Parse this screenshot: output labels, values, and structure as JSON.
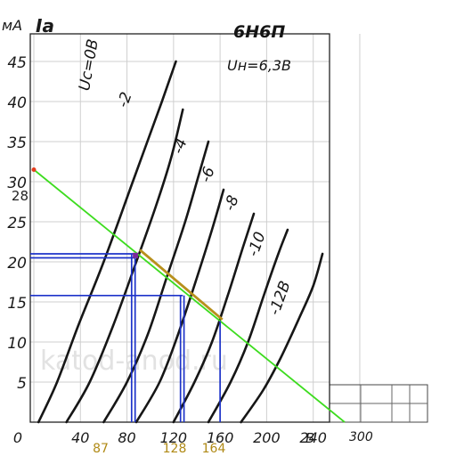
{
  "chart_data": {
    "type": "line",
    "title": "6Н6П",
    "heater": "Uн=6,3В",
    "ylabel_unit": "мА",
    "ylabel_symbol": "Iа",
    "xlabel_unit": "В",
    "xlim": [
      0,
      320
    ],
    "ylim": [
      0,
      47
    ],
    "y_ticks": [
      "0",
      "5",
      "10",
      "15",
      "20",
      "25",
      "30",
      "35",
      "40",
      "45"
    ],
    "y_tick_values": [
      0,
      5,
      10,
      15,
      20,
      25,
      30,
      35,
      40,
      45
    ],
    "x_ticks": [
      "0",
      "40",
      "80",
      "120",
      "160",
      "200",
      "240"
    ],
    "x_tick_values": [
      0,
      40,
      80,
      120,
      160,
      200,
      240
    ],
    "x_extra_tick": "300",
    "x_extra_tick_value": 300,
    "series": [
      {
        "name": "Uс=0В",
        "points": [
          [
            4,
            0
          ],
          [
            20,
            5
          ],
          [
            38,
            12
          ],
          [
            60,
            20
          ],
          [
            85,
            30
          ],
          [
            110,
            40
          ],
          [
            122,
            45
          ]
        ]
      },
      {
        "name": "-2",
        "points": [
          [
            28,
            0
          ],
          [
            48,
            5
          ],
          [
            68,
            12
          ],
          [
            88,
            20
          ],
          [
            105,
            27
          ],
          [
            118,
            33
          ],
          [
            128,
            39
          ]
        ]
      },
      {
        "name": "-4",
        "points": [
          [
            60,
            0
          ],
          [
            80,
            5
          ],
          [
            98,
            11
          ],
          [
            114,
            18
          ],
          [
            130,
            25
          ],
          [
            142,
            31
          ],
          [
            150,
            35
          ]
        ]
      },
      {
        "name": "-6",
        "points": [
          [
            88,
            0
          ],
          [
            108,
            5
          ],
          [
            124,
            11
          ],
          [
            140,
            18
          ],
          [
            153,
            24
          ],
          [
            163,
            29
          ]
        ]
      },
      {
        "name": "-8",
        "points": [
          [
            120,
            0
          ],
          [
            138,
            5
          ],
          [
            153,
            10
          ],
          [
            167,
            16
          ],
          [
            180,
            22
          ],
          [
            189,
            26
          ]
        ]
      },
      {
        "name": "-10",
        "points": [
          [
            150,
            0
          ],
          [
            169,
            5
          ],
          [
            184,
            10
          ],
          [
            198,
            16
          ],
          [
            210,
            21
          ],
          [
            218,
            24
          ]
        ]
      },
      {
        "name": "-12В",
        "points": [
          [
            178,
            0
          ],
          [
            197,
            4
          ],
          [
            212,
            8
          ],
          [
            228,
            13
          ],
          [
            240,
            17
          ],
          [
            248,
            21
          ]
        ]
      }
    ],
    "load_line": {
      "points": [
        [
          0,
          31.5
        ],
        [
          267,
          0
        ]
      ]
    },
    "operating_segment": {
      "points": [
        [
          91,
          21.5
        ],
        [
          162,
          12.8
        ]
      ]
    },
    "op_lines": [
      {
        "x": 87,
        "y": 21,
        "y_mid": 20.5
      },
      {
        "x": 128,
        "y": 15.8
      }
    ],
    "op_labels": [
      "87",
      "128",
      "164"
    ],
    "op_label_values": [
      87,
      128,
      164
    ],
    "side_label": "28",
    "side_label_value": 28,
    "grid_lines_y": [
      0,
      5,
      10,
      15,
      20,
      25,
      30,
      35,
      40,
      45
    ],
    "grid_lines_x": [
      0,
      40,
      80,
      120,
      160,
      200,
      240,
      280
    ],
    "ext_grid_x": [
      280,
      300,
      320,
      340
    ],
    "watermark": "katod-anod.ru"
  }
}
